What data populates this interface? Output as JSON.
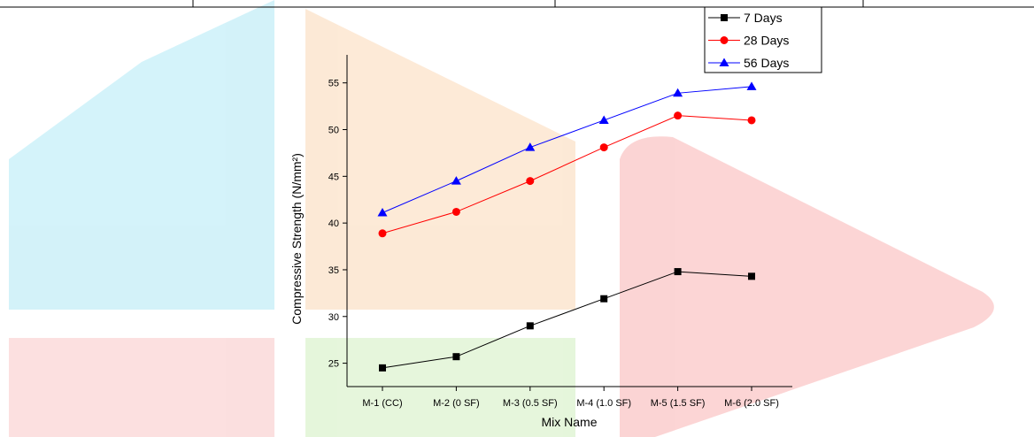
{
  "chart_data": {
    "type": "line",
    "x_label": "Mix Name",
    "y_label": "Compressive Strength (N/mm²)",
    "categories": [
      "M-1 (CC)",
      "M-2 (0 SF)",
      "M-3 (0.5 SF)",
      "M-4 (1.0 SF)",
      "M-5 (1.5 SF)",
      "M-6 (2.0 SF)"
    ],
    "series": [
      {
        "name": "7 Days",
        "color": "#000000",
        "marker": "square",
        "values": [
          24.5,
          25.7,
          29.0,
          31.9,
          34.8,
          34.3
        ]
      },
      {
        "name": "28 Days",
        "color": "#ff0000",
        "marker": "circle",
        "values": [
          38.9,
          41.2,
          44.5,
          48.1,
          51.5,
          51.0
        ]
      },
      {
        "name": "56 Days",
        "color": "#0000ff",
        "marker": "triangle",
        "values": [
          41.1,
          44.5,
          48.1,
          51.0,
          53.9,
          54.6
        ]
      }
    ],
    "ylim": [
      22.5,
      58
    ],
    "yticks": [
      25,
      30,
      35,
      40,
      45,
      50,
      55
    ],
    "legend": "top-right"
  }
}
